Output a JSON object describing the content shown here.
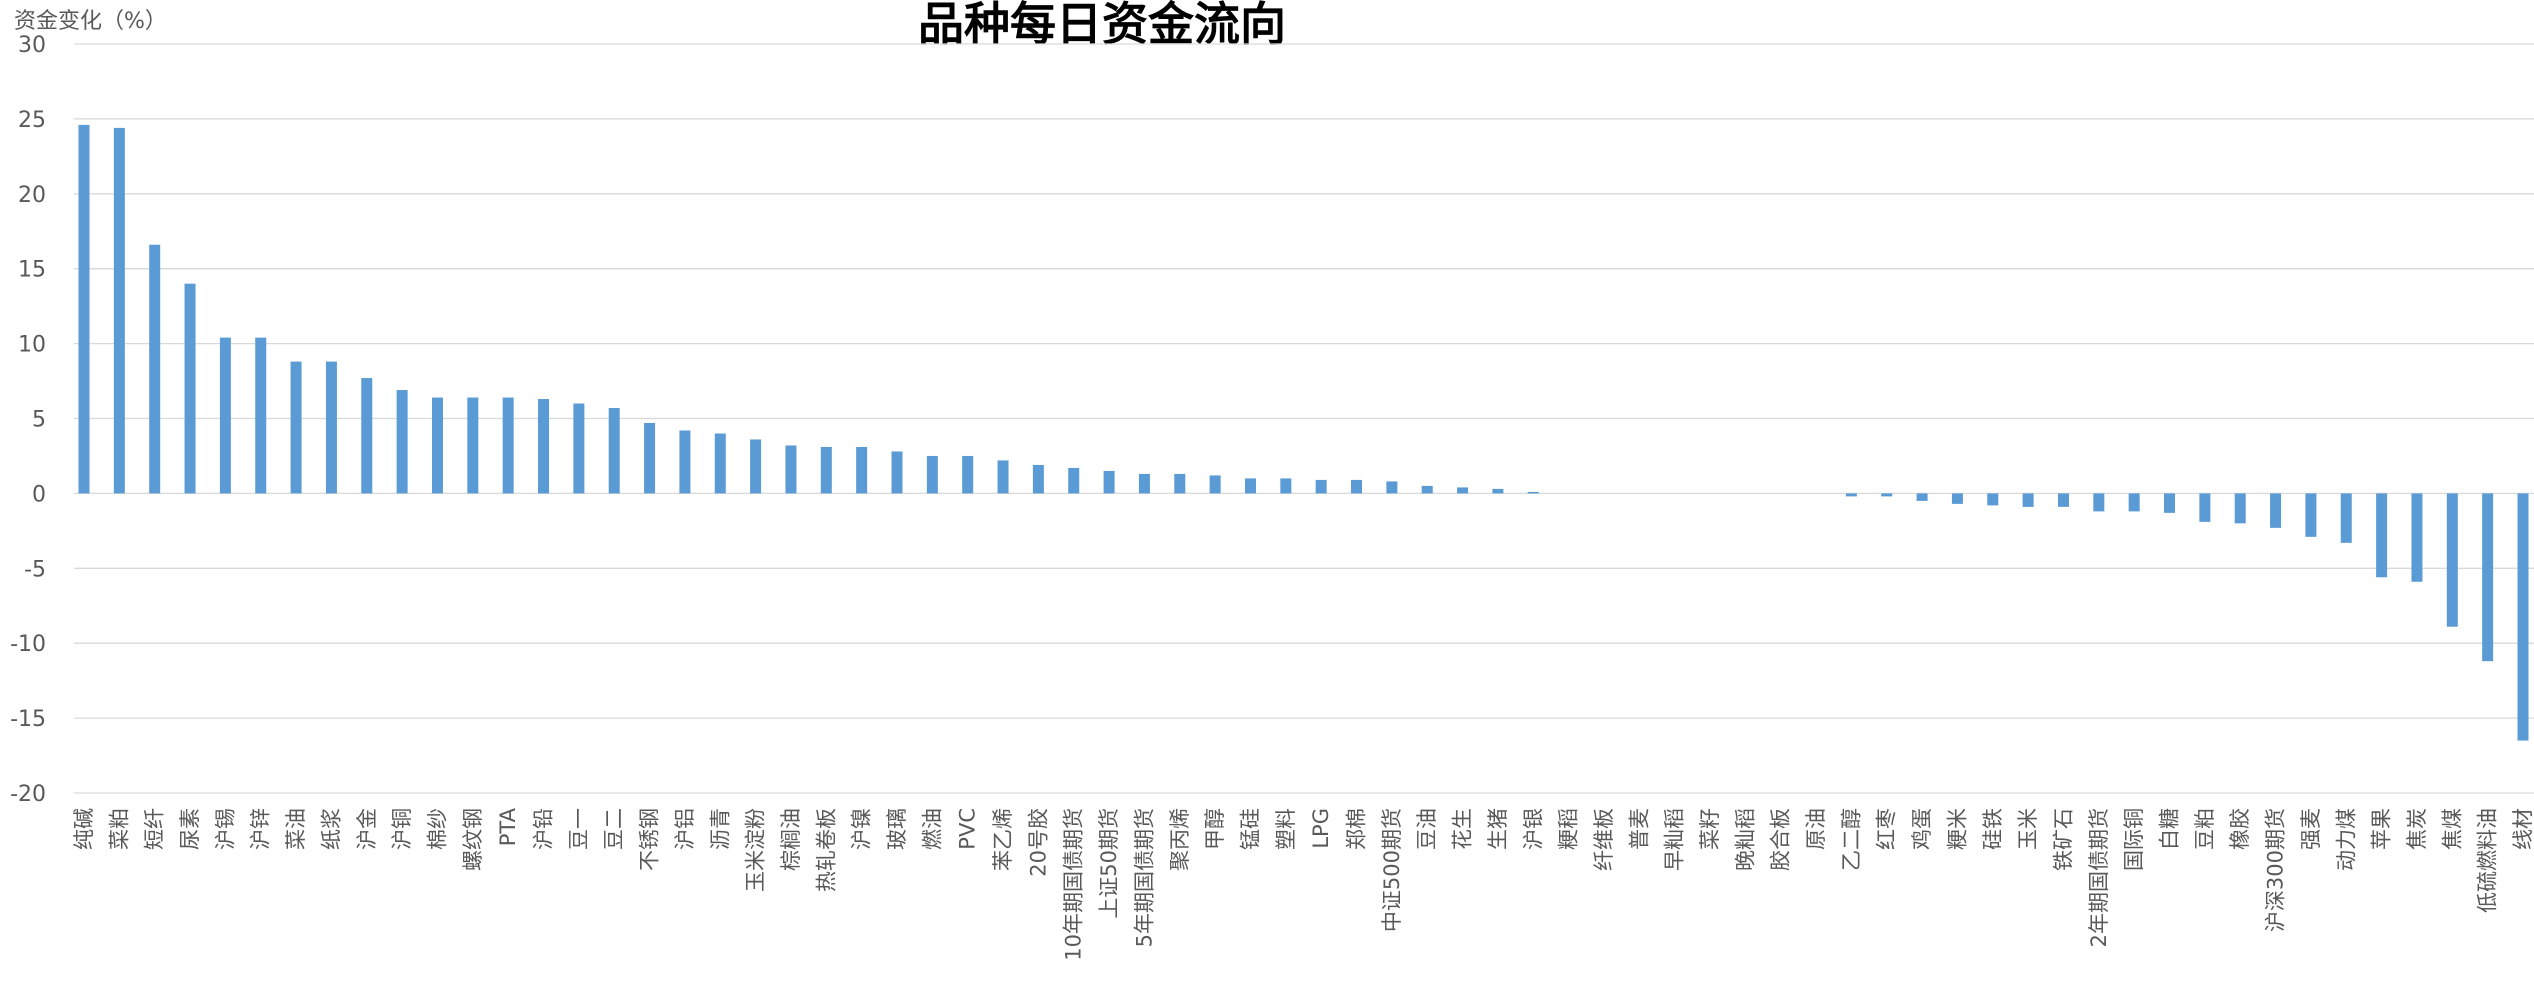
{
  "chart_data": {
    "type": "bar",
    "title": "品种每日资金流向",
    "ylabel": "资金变化（%）",
    "xlabel": "",
    "ylim": [
      -20,
      30
    ],
    "yticks": [
      30,
      25,
      20,
      15,
      10,
      5,
      0,
      -5,
      -10,
      -15,
      -20
    ],
    "grid": true,
    "bar_color": "#5b9bd5",
    "categories": [
      "纯碱",
      "菜粕",
      "短纤",
      "尿素",
      "沪锡",
      "沪锌",
      "菜油",
      "纸浆",
      "沪金",
      "沪铜",
      "棉纱",
      "螺纹钢",
      "PTA",
      "沪铅",
      "豆一",
      "豆二",
      "不锈钢",
      "沪铝",
      "沥青",
      "玉米淀粉",
      "棕榈油",
      "热轧卷板",
      "沪镍",
      "玻璃",
      "燃油",
      "PVC",
      "苯乙烯",
      "20号胶",
      "10年期国债期货",
      "上证50期货",
      "5年期国债期货",
      "聚丙烯",
      "甲醇",
      "锰硅",
      "塑料",
      "LPG",
      "郑棉",
      "中证500期货",
      "豆油",
      "花生",
      "生猪",
      "沪银",
      "粳稻",
      "纤维板",
      "普麦",
      "早籼稻",
      "菜籽",
      "晚籼稻",
      "胶合板",
      "原油",
      "乙二醇",
      "红枣",
      "鸡蛋",
      "粳米",
      "硅铁",
      "玉米",
      "铁矿石",
      "2年期国债期货",
      "国际铜",
      "白糖",
      "豆粕",
      "橡胶",
      "沪深300期货",
      "强麦",
      "动力煤",
      "苹果",
      "焦炭",
      "焦煤",
      "低硫燃料油",
      "线材"
    ],
    "values": [
      24.6,
      24.4,
      16.6,
      14.0,
      10.4,
      10.4,
      8.8,
      8.8,
      7.7,
      6.9,
      6.4,
      6.4,
      6.4,
      6.3,
      6.0,
      5.7,
      4.7,
      4.2,
      4.0,
      3.6,
      3.2,
      3.1,
      3.1,
      2.8,
      2.5,
      2.5,
      2.2,
      1.9,
      1.7,
      1.5,
      1.3,
      1.3,
      1.2,
      1.0,
      1.0,
      0.9,
      0.9,
      0.8,
      0.5,
      0.4,
      0.3,
      0.1,
      0,
      0,
      0,
      0,
      0,
      0,
      0,
      0,
      -0.2,
      -0.2,
      -0.5,
      -0.7,
      -0.8,
      -0.9,
      -0.9,
      -1.2,
      -1.2,
      -1.3,
      -1.9,
      -2.0,
      -2.3,
      -2.9,
      -3.3,
      -5.6,
      -5.9,
      -8.9,
      -11.2,
      -16.5
    ]
  }
}
